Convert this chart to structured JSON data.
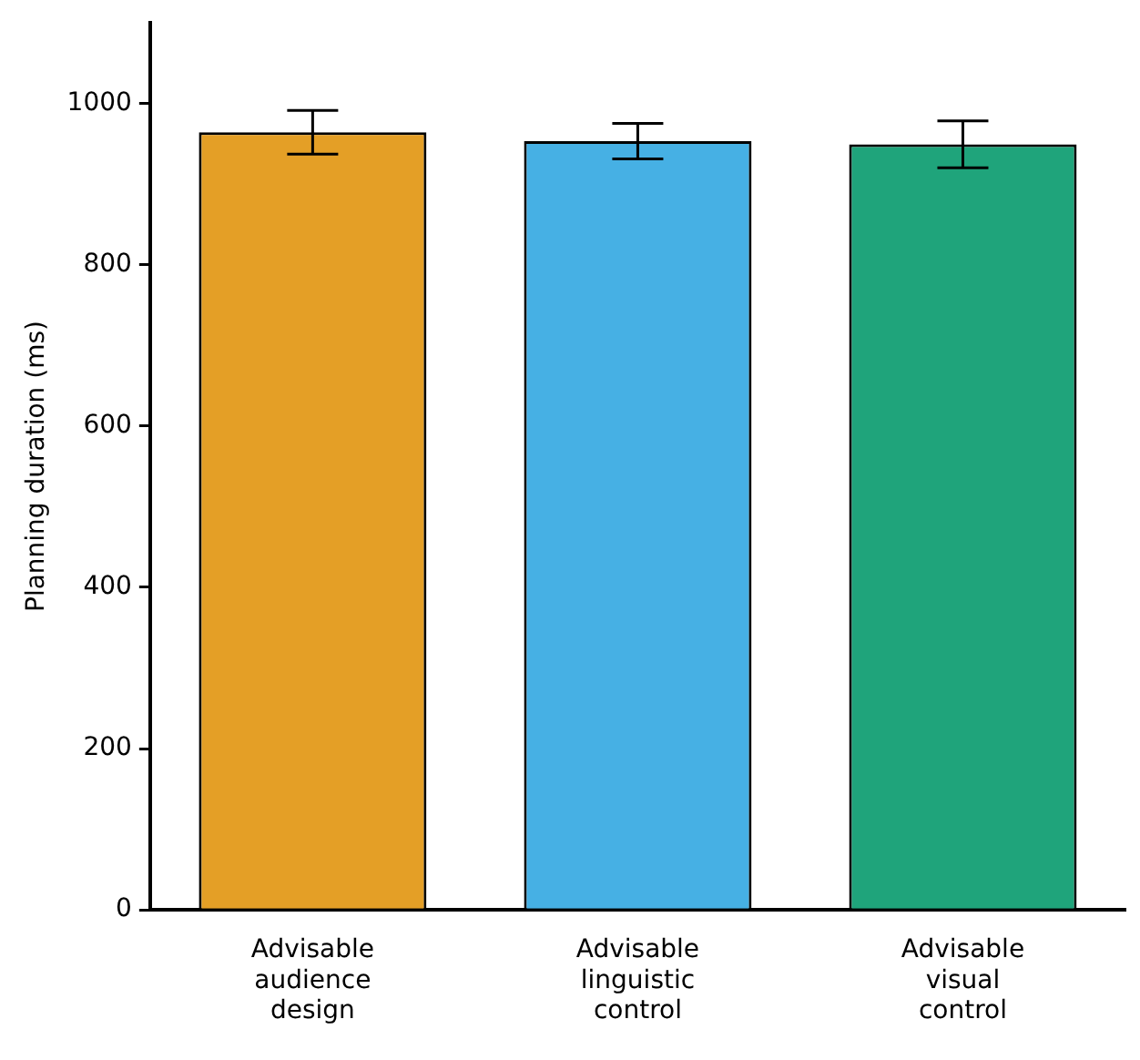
{
  "chart_data": {
    "type": "bar",
    "ylabel": "Planning duration (ms)",
    "categories": [
      "Advisable audience design",
      "Advisable linguistic control",
      "Advisable visual control"
    ],
    "values": [
      964,
      953,
      949
    ],
    "colors": [
      "#e49f26",
      "#46b0e4",
      "#1fa47b"
    ],
    "errors": [
      27,
      22,
      29
    ],
    "ylim": [
      0,
      1100
    ],
    "yticks": [
      0,
      200,
      400,
      600,
      800,
      1000
    ],
    "grid": false,
    "legend": false
  }
}
